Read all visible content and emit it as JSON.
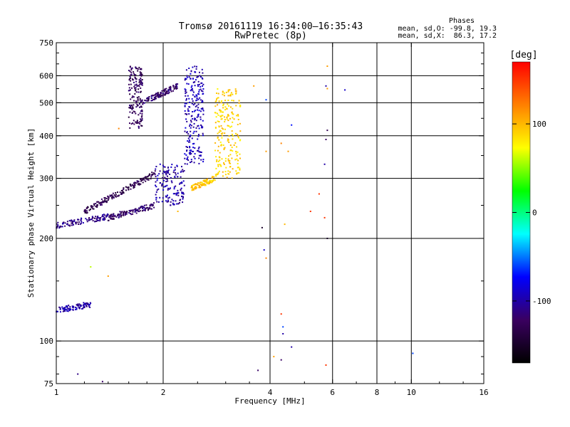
{
  "chart_data": {
    "type": "scatter",
    "title": "Tromsø 20161119 16:34:00–16:35:43",
    "subtitle": "RwPretec (8p)",
    "stats": {
      "title": "Phases",
      "line_o": "mean, sd,O: -99.8, 19.3",
      "line_x": "mean, sd,X:  86.3, 17.2"
    },
    "xlabel": "Frequency [MHz]",
    "ylabel": "Stationary phase Virtual Height [km]",
    "x_scale": "log",
    "y_scale": "log",
    "xlim": [
      1,
      16
    ],
    "ylim": [
      75,
      750
    ],
    "x_ticks": [
      1,
      2,
      4,
      6,
      8,
      10,
      16
    ],
    "y_ticks": [
      75,
      100,
      200,
      300,
      400,
      500,
      600,
      750
    ],
    "x_gridlines": [
      2,
      4,
      6,
      8,
      10
    ],
    "y_gridlines": [
      100,
      200,
      300,
      400,
      500,
      600
    ],
    "grid": true,
    "colorbar": {
      "label": "[deg]",
      "range": [
        -170,
        170
      ],
      "ticks": [
        -100,
        0,
        100
      ],
      "colormap": [
        "#000000",
        "#3a0060",
        "#0000ff",
        "#00ffff",
        "#00ff00",
        "#ffff00",
        "#ff8000",
        "#ff0000"
      ]
    },
    "traces": [
      {
        "fmin": 1.0,
        "fmax": 1.25,
        "hmin": 123,
        "hmax": 128,
        "phase": -100
      },
      {
        "fmin": 1.0,
        "fmax": 1.4,
        "hmin": 218,
        "hmax": 232,
        "phase": -110
      },
      {
        "fmin": 1.4,
        "fmax": 1.9,
        "hmin": 230,
        "hmax": 250,
        "phase": -120
      },
      {
        "fmin": 1.9,
        "fmax": 2.3,
        "hmin": 250,
        "hmax": 330,
        "phase": -100
      },
      {
        "fmin": 2.3,
        "fmax": 2.6,
        "hmin": 330,
        "hmax": 640,
        "phase": -95
      },
      {
        "fmin": 1.6,
        "fmax": 1.75,
        "hmin": 420,
        "hmax": 640,
        "phase": -125
      },
      {
        "fmin": 1.75,
        "fmax": 2.2,
        "hmin": 500,
        "hmax": 560,
        "phase": -120
      },
      {
        "fmin": 2.4,
        "fmax": 2.8,
        "hmin": 280,
        "hmax": 300,
        "phase": 95
      },
      {
        "fmin": 2.8,
        "fmax": 3.3,
        "hmin": 300,
        "hmax": 550,
        "phase": 90
      },
      {
        "fmin": 1.2,
        "fmax": 1.9,
        "hmin": 240,
        "hmax": 310,
        "phase": -130
      }
    ],
    "scattered": [
      {
        "f": 1.15,
        "h": 80,
        "phase": -110
      },
      {
        "f": 1.35,
        "h": 76,
        "phase": -120
      },
      {
        "f": 1.25,
        "h": 165,
        "phase": 60
      },
      {
        "f": 1.4,
        "h": 155,
        "phase": 110
      },
      {
        "f": 3.85,
        "h": 185,
        "phase": -90
      },
      {
        "f": 3.8,
        "h": 215,
        "phase": -150
      },
      {
        "f": 3.9,
        "h": 175,
        "phase": 120
      },
      {
        "f": 3.7,
        "h": 82,
        "phase": -120
      },
      {
        "f": 4.3,
        "h": 120,
        "phase": 150
      },
      {
        "f": 4.35,
        "h": 110,
        "phase": -60
      },
      {
        "f": 4.35,
        "h": 105,
        "phase": -100
      },
      {
        "f": 4.6,
        "h": 96,
        "phase": -100
      },
      {
        "f": 4.3,
        "h": 88,
        "phase": -120
      },
      {
        "f": 4.1,
        "h": 90,
        "phase": 110
      },
      {
        "f": 4.4,
        "h": 220,
        "phase": 100
      },
      {
        "f": 5.2,
        "h": 240,
        "phase": 150
      },
      {
        "f": 5.5,
        "h": 270,
        "phase": 150
      },
      {
        "f": 5.7,
        "h": 230,
        "phase": 150
      },
      {
        "f": 5.8,
        "h": 200,
        "phase": -150
      },
      {
        "f": 5.7,
        "h": 330,
        "phase": -100
      },
      {
        "f": 5.75,
        "h": 390,
        "phase": -120
      },
      {
        "f": 5.8,
        "h": 415,
        "phase": -130
      },
      {
        "f": 5.75,
        "h": 560,
        "phase": -100
      },
      {
        "f": 5.8,
        "h": 550,
        "phase": 110
      },
      {
        "f": 5.8,
        "h": 640,
        "phase": 110
      },
      {
        "f": 6.5,
        "h": 545,
        "phase": -90
      },
      {
        "f": 5.75,
        "h": 85,
        "phase": 150
      },
      {
        "f": 10.1,
        "h": 92,
        "phase": -60
      },
      {
        "f": 4.6,
        "h": 430,
        "phase": -70
      },
      {
        "f": 4.5,
        "h": 360,
        "phase": 110
      },
      {
        "f": 4.3,
        "h": 380,
        "phase": 120
      },
      {
        "f": 3.9,
        "h": 360,
        "phase": 110
      },
      {
        "f": 3.9,
        "h": 510,
        "phase": -60
      },
      {
        "f": 3.6,
        "h": 560,
        "phase": 110
      },
      {
        "f": 1.5,
        "h": 420,
        "phase": 120
      },
      {
        "f": 2.2,
        "h": 240,
        "phase": 100
      }
    ]
  }
}
